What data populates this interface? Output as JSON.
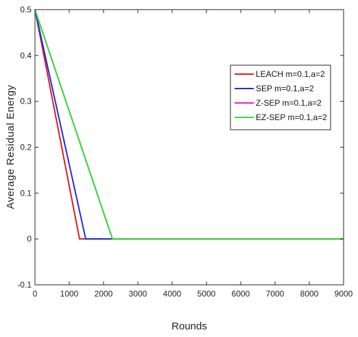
{
  "chart_data": {
    "type": "line",
    "title": "",
    "xlabel": "Rounds",
    "ylabel": "Average Residual Energy",
    "xlim": [
      0,
      9000
    ],
    "ylim": [
      -0.1,
      0.5
    ],
    "xticks": [
      0,
      1000,
      2000,
      3000,
      4000,
      5000,
      6000,
      7000,
      8000,
      9000
    ],
    "xtick_labels": [
      "0",
      "1000",
      "2000",
      "3000",
      "4000",
      "5000",
      "6000",
      "7000",
      "8000",
      "9000"
    ],
    "yticks": [
      -0.1,
      0,
      0.1,
      0.2,
      0.3,
      0.4,
      0.5
    ],
    "ytick_labels": [
      "-0.1",
      "0",
      "0.1",
      "0.2",
      "0.3",
      "0.4",
      "0.5"
    ],
    "grid": false,
    "legend_position": "right",
    "series": [
      {
        "name": "LEACH  m=0.1,a=2",
        "color": "#e41a1c",
        "x": [
          0,
          1300,
          9000
        ],
        "y": [
          0.5,
          0,
          0
        ]
      },
      {
        "name": "SEP   m=0.1,a=2",
        "color": "#1f2fd6",
        "x": [
          0,
          1480,
          9000
        ],
        "y": [
          0.5,
          0,
          0
        ]
      },
      {
        "name": "Z-SEP  m=0.1,a=2",
        "color": "#e020e0",
        "x": [
          0,
          2260,
          9000
        ],
        "y": [
          0.5,
          0,
          0
        ]
      },
      {
        "name": "EZ-SEP  m=0.1,a=2",
        "color": "#33e033",
        "x": [
          0,
          2260,
          9000
        ],
        "y": [
          0.5,
          0,
          0
        ]
      }
    ]
  }
}
